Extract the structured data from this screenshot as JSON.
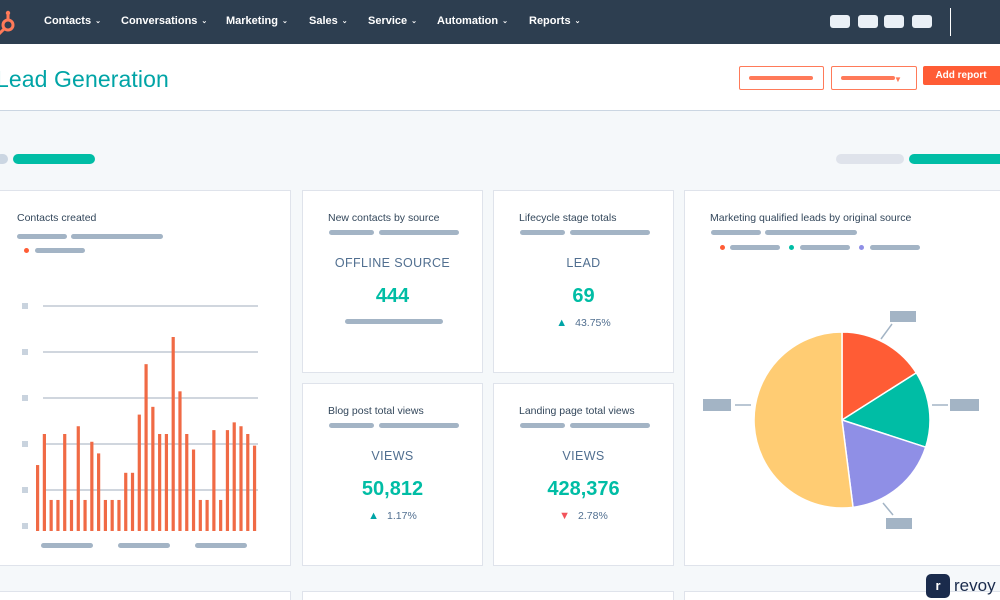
{
  "nav": {
    "items": [
      {
        "label": "Contacts"
      },
      {
        "label": "Conversations"
      },
      {
        "label": "Marketing"
      },
      {
        "label": "Sales"
      },
      {
        "label": "Service"
      },
      {
        "label": "Automation"
      },
      {
        "label": "Reports"
      }
    ],
    "chevron": "⌄"
  },
  "header": {
    "title": "Lead Generation",
    "add_report_label": "Add report",
    "dropdown_arrow": "▼"
  },
  "cards": {
    "contacts_created": {
      "title": "Contacts created",
      "chart_data": {
        "type": "bar",
        "values": [
          17,
          25,
          8,
          8,
          25,
          8,
          27,
          8,
          23,
          20,
          8,
          8,
          8,
          15,
          15,
          30,
          43,
          32,
          25,
          25,
          50,
          36,
          25,
          21,
          8,
          8,
          26,
          8,
          26,
          28,
          27,
          25,
          22
        ]
      },
      "colors": {
        "bar": "#f06a45",
        "tick": "#c9d3de",
        "grid": "#a0aebd"
      }
    },
    "new_contacts_by_source": {
      "title": "New contacts by source",
      "label": "OFFLINE SOURCE",
      "value": "444"
    },
    "lifecycle_stage_totals": {
      "title": "Lifecycle stage totals",
      "label": "LEAD",
      "value": "69",
      "delta": "43.75%",
      "delta_arrow": "▲"
    },
    "blog_post_total_views": {
      "title": "Blog post total views",
      "label": "VIEWS",
      "value": "50,812",
      "delta": "1.17%",
      "delta_arrow": "▲"
    },
    "landing_page_total_views": {
      "title": "Landing page total views",
      "label": "VIEWS",
      "value": "428,376",
      "delta": "2.78%",
      "delta_arrow": "▼"
    },
    "mql_by_source": {
      "title": "Marketing qualified leads by original source",
      "chart_data": {
        "type": "pie",
        "values": [
          16,
          14,
          18,
          52
        ],
        "colors": [
          "#ff5c35",
          "#00bda5",
          "#8f8fe6",
          "#ffcc73"
        ]
      }
    }
  },
  "colors": {
    "nav_bg": "#2d3e50",
    "accent_teal": "#00a4a6",
    "accent_orange": "#ff5c35",
    "positive": "#00a4a6",
    "negative": "#f2545b"
  },
  "watermark": {
    "icon_letter": "r",
    "text": "revoy"
  }
}
